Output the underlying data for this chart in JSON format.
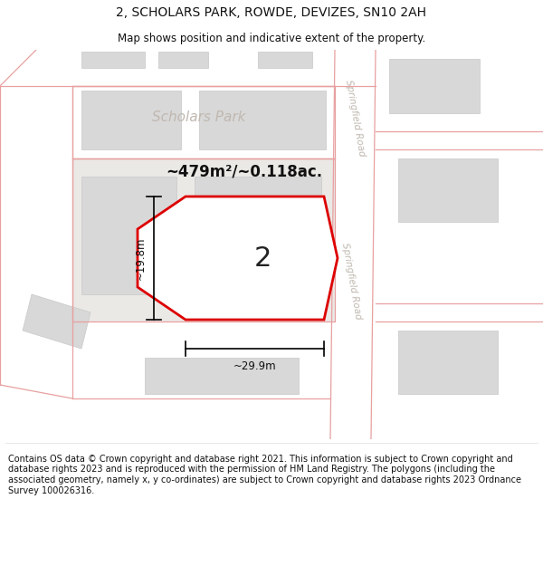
{
  "title": "2, SCHOLARS PARK, ROWDE, DEVIZES, SN10 2AH",
  "subtitle": "Map shows position and indicative extent of the property.",
  "footer": "Contains OS data © Crown copyright and database right 2021. This information is subject to Crown copyright and database rights 2023 and is reproduced with the permission of HM Land Registry. The polygons (including the associated geometry, namely x, y co-ordinates) are subject to Crown copyright and database rights 2023 Ordnance Survey 100026316.",
  "map_bg": "#f5f3f0",
  "road_fill": "#ffffff",
  "road_outline": "#e8a0a0",
  "building_fill": "#d8d8d8",
  "building_outline": "#c8c8c8",
  "plot_outline_fill": "#ffffff",
  "plot_outline_edge": "#dd0000",
  "road_label_color": "#c0b8b0",
  "area_text": "~479m²/~0.118ac.",
  "property_label": "2",
  "dim_label_v": "~19.8m",
  "dim_label_h": "~29.9m",
  "scholars_park_label": "Scholars Park",
  "springfield_road_label": "Springfield Road",
  "title_fontsize": 10,
  "subtitle_fontsize": 8.5,
  "footer_fontsize": 7
}
